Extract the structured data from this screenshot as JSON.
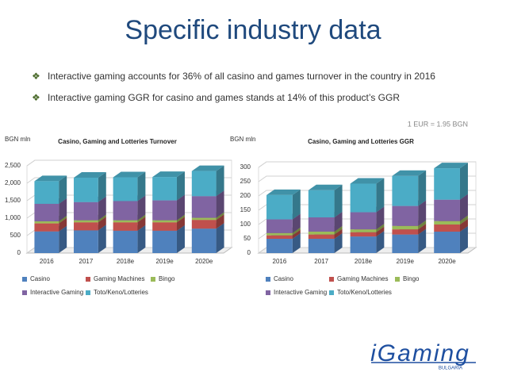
{
  "title": "Specific industry data",
  "bullets": [
    "Interactive gaming accounts for 36% of all casino and games turnover in the country in 2016",
    "Interactive gaming GGR for casino and games stands at 14% of this product’s GGR"
  ],
  "note": "1 EUR = 1.95 BGN",
  "logo": {
    "text": "iGaming",
    "sub": "BULGARIA"
  },
  "chart_data": [
    {
      "type": "bar",
      "stacked": true,
      "title": "Casino, Gaming and Lotteries Turnover",
      "ylabel": "BGN mln",
      "categories": [
        "2016",
        "2017",
        "2018e",
        "2019e",
        "2020e"
      ],
      "series": [
        {
          "name": "Casino",
          "color": "#4f81bd",
          "values": [
            620,
            650,
            640,
            640,
            700
          ]
        },
        {
          "name": "Gaming Machines",
          "color": "#c0504d",
          "values": [
            230,
            230,
            240,
            240,
            250
          ]
        },
        {
          "name": "Bingo",
          "color": "#9bbb59",
          "values": [
            60,
            60,
            60,
            60,
            60
          ]
        },
        {
          "name": "Interactive Gaming",
          "color": "#8064a2",
          "values": [
            500,
            520,
            550,
            570,
            620
          ]
        },
        {
          "name": "Toto/Keno/Lotteries",
          "color": "#4bacc6",
          "values": [
            650,
            700,
            680,
            670,
            720
          ]
        }
      ],
      "ylim": [
        0,
        2500
      ],
      "yticks": [
        0,
        500,
        {
          "value": 1000,
          "label": "1,000"
        },
        {
          "value": 1500,
          "label": "1,500"
        },
        {
          "value": 2000,
          "label": "2,000"
        },
        {
          "value": 2500,
          "label": "2,500"
        }
      ],
      "grid": true,
      "legend": "bottom"
    },
    {
      "type": "bar",
      "stacked": true,
      "title": "Casino, Gaming and Lotteries GGR",
      "ylabel": "BGN mln",
      "categories": [
        "2016",
        "2017",
        "2018e",
        "2019e",
        "2020e"
      ],
      "series": [
        {
          "name": "Casino",
          "color": "#4f81bd",
          "values": [
            50,
            50,
            58,
            65,
            75
          ]
        },
        {
          "name": "Gaming Machines",
          "color": "#c0504d",
          "values": [
            12,
            15,
            15,
            18,
            25
          ]
        },
        {
          "name": "Bingo",
          "color": "#9bbb59",
          "values": [
            8,
            10,
            10,
            12,
            12
          ]
        },
        {
          "name": "Interactive Gaming",
          "color": "#8064a2",
          "values": [
            48,
            50,
            60,
            70,
            75
          ]
        },
        {
          "name": "Toto/Keno/Lotteries",
          "color": "#4bacc6",
          "values": [
            85,
            95,
            100,
            105,
            110
          ]
        }
      ],
      "ylim": [
        0,
        300
      ],
      "yticks": [
        0,
        50,
        100,
        150,
        200,
        250,
        300
      ],
      "grid": true,
      "legend": "bottom"
    }
  ]
}
